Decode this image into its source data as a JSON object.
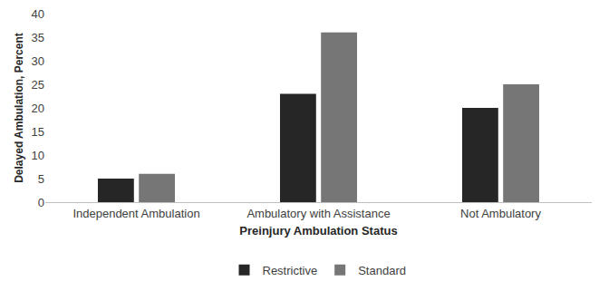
{
  "chart_data": {
    "type": "bar",
    "x_label": "Preinjury Ambulation Status",
    "y_label": "Delayed Ambulation, Percent",
    "categories": [
      "Independent Ambulation",
      "Ambulatory with Assistance",
      "Not Ambulatory"
    ],
    "series": [
      {
        "name": "Restrictive",
        "color": "#262626",
        "values": [
          5,
          23,
          20
        ]
      },
      {
        "name": "Standard",
        "color": "#767676",
        "values": [
          6,
          36,
          25
        ]
      }
    ],
    "ylim": [
      0,
      40
    ],
    "yticks": [
      0,
      5,
      10,
      15,
      20,
      25,
      30,
      35,
      40
    ],
    "grid": false,
    "legend": "bottom"
  }
}
